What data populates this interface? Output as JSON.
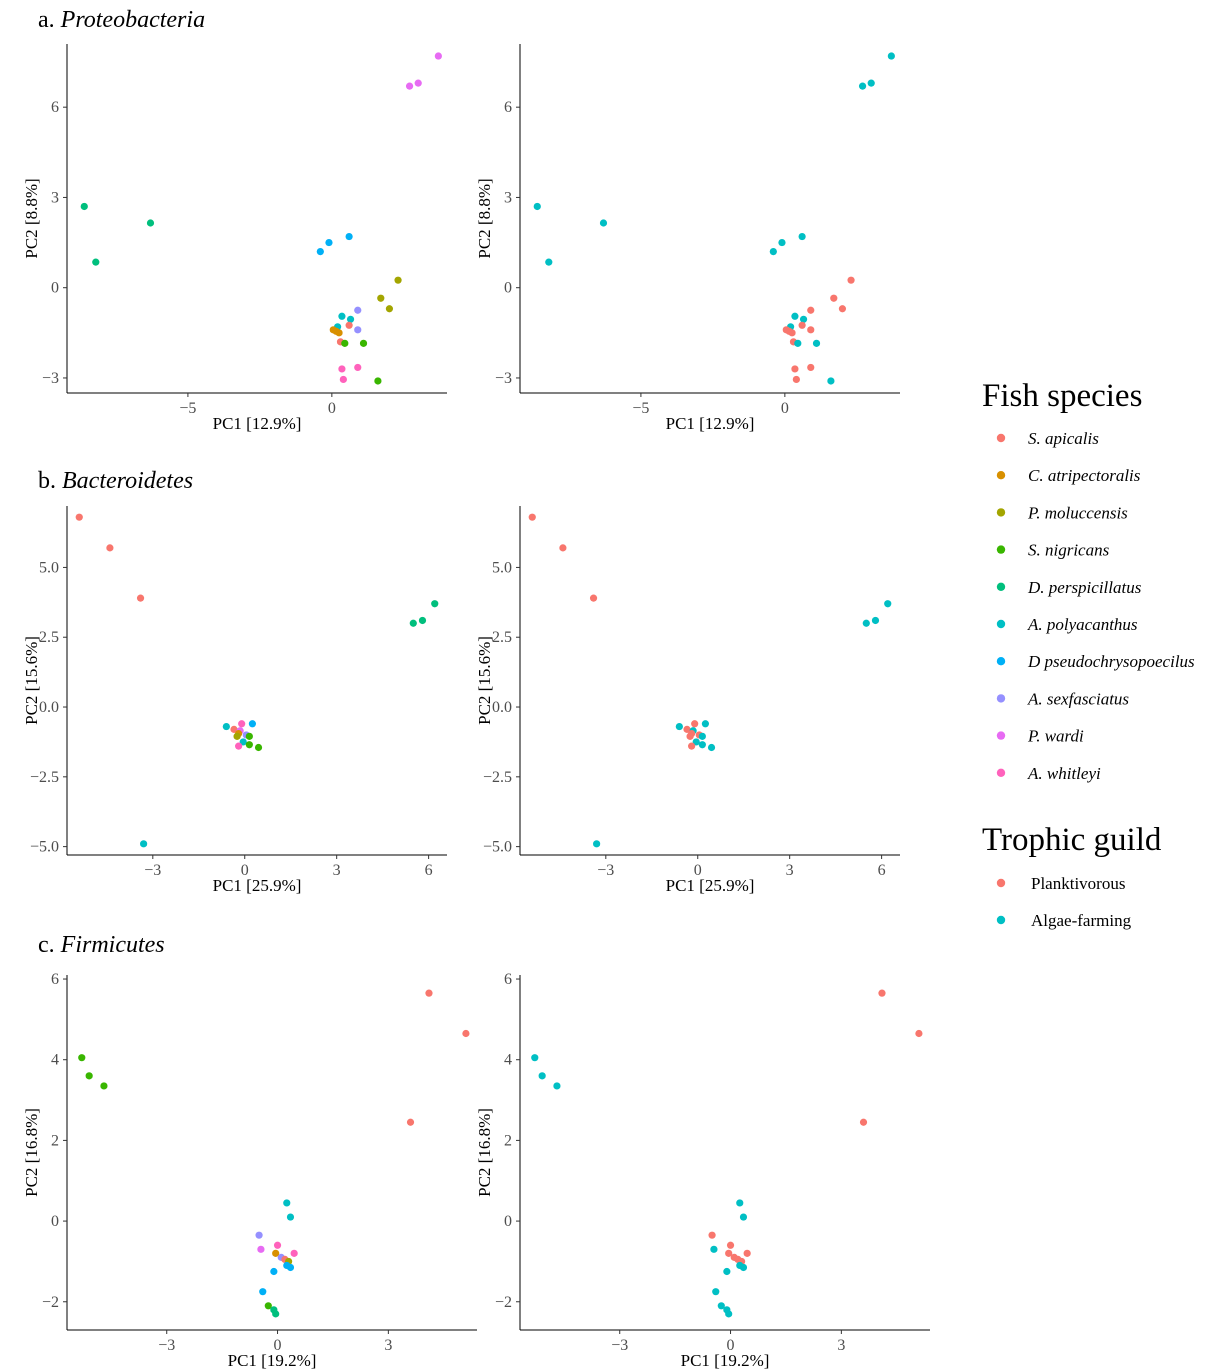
{
  "chart_data": [
    {
      "type": "scatter",
      "panel": "a",
      "title_prefix": "a.",
      "title_taxon": "Proteobacteria",
      "xlabel": "PC1   [12.9%]",
      "ylabel": "PC2   [8.8%]",
      "xticks": [
        "−5",
        "0"
      ],
      "yticks": [
        "−3",
        "0",
        "3",
        "6"
      ],
      "points": [
        {
          "x": -8.6,
          "y": 2.7,
          "species": "D. perspicillatus"
        },
        {
          "x": -8.2,
          "y": 0.85,
          "species": "D. perspicillatus"
        },
        {
          "x": -6.3,
          "y": 2.15,
          "species": "D. perspicillatus"
        },
        {
          "x": -0.4,
          "y": 1.2,
          "species": "D pseudochrysopoecilus"
        },
        {
          "x": -0.1,
          "y": 1.5,
          "species": "D pseudochrysopoecilus"
        },
        {
          "x": 0.6,
          "y": 1.7,
          "species": "D pseudochrysopoecilus"
        },
        {
          "x": 2.3,
          "y": 0.25,
          "species": "P. moluccensis"
        },
        {
          "x": 1.7,
          "y": -0.35,
          "species": "P. moluccensis"
        },
        {
          "x": 2.0,
          "y": -0.7,
          "species": "P. moluccensis"
        },
        {
          "x": 0.9,
          "y": -0.75,
          "species": "A. sexfasciatus"
        },
        {
          "x": 0.9,
          "y": -1.4,
          "species": "A. sexfasciatus"
        },
        {
          "x": 0.35,
          "y": -0.95,
          "species": "A. polyacanthus"
        },
        {
          "x": 0.65,
          "y": -1.05,
          "species": "A. polyacanthus"
        },
        {
          "x": 0.6,
          "y": -1.25,
          "species": "S. apicalis"
        },
        {
          "x": 0.2,
          "y": -1.3,
          "species": "A. polyacanthus"
        },
        {
          "x": 0.05,
          "y": -1.4,
          "species": "C. atripectoralis"
        },
        {
          "x": 0.15,
          "y": -1.45,
          "species": "C. atripectoralis"
        },
        {
          "x": 0.25,
          "y": -1.5,
          "species": "C. atripectoralis"
        },
        {
          "x": 0.3,
          "y": -1.8,
          "species": "S. apicalis"
        },
        {
          "x": 0.45,
          "y": -1.85,
          "species": "S. nigricans"
        },
        {
          "x": 1.1,
          "y": -1.85,
          "species": "S. nigricans"
        },
        {
          "x": 0.35,
          "y": -2.7,
          "species": "A. whitleyi"
        },
        {
          "x": 0.9,
          "y": -2.65,
          "species": "A. whitleyi"
        },
        {
          "x": 0.4,
          "y": -3.05,
          "species": "A. whitleyi"
        },
        {
          "x": 1.6,
          "y": -3.1,
          "species": "S. nigricans"
        },
        {
          "x": 2.7,
          "y": 6.7,
          "species": "P. wardi"
        },
        {
          "x": 3.0,
          "y": 6.8,
          "species": "P. wardi"
        },
        {
          "x": 3.7,
          "y": 7.7,
          "species": "P. wardi"
        }
      ]
    },
    {
      "type": "scatter",
      "panel": "b",
      "title_prefix": "b.",
      "title_taxon": "Bacteroidetes",
      "xlabel": "PC1   [25.9%]",
      "ylabel": "PC2   [15.6%]",
      "xticks": [
        "−3",
        "0",
        "3",
        "6"
      ],
      "yticks": [
        "−5.0",
        "−2.5",
        "0.0",
        "2.5",
        "5.0"
      ],
      "points": [
        {
          "x": -5.4,
          "y": 6.8,
          "species": "S. apicalis"
        },
        {
          "x": -4.4,
          "y": 5.7,
          "species": "S. apicalis"
        },
        {
          "x": -3.4,
          "y": 3.9,
          "species": "S. apicalis"
        },
        {
          "x": -3.3,
          "y": -4.9,
          "species": "A. polyacanthus"
        },
        {
          "x": 5.5,
          "y": 3.0,
          "species": "D. perspicillatus"
        },
        {
          "x": 5.8,
          "y": 3.1,
          "species": "D. perspicillatus"
        },
        {
          "x": 6.2,
          "y": 3.7,
          "species": "D. perspicillatus"
        },
        {
          "x": -0.6,
          "y": -0.7,
          "species": "A. polyacanthus"
        },
        {
          "x": -0.35,
          "y": -0.8,
          "species": "S. apicalis"
        },
        {
          "x": -0.1,
          "y": -0.6,
          "species": "A. whitleyi"
        },
        {
          "x": 0.25,
          "y": -0.6,
          "species": "D pseudochrysopoecilus"
        },
        {
          "x": -0.15,
          "y": -0.85,
          "species": "P. wardi"
        },
        {
          "x": -0.2,
          "y": -0.95,
          "species": "C. atripectoralis"
        },
        {
          "x": -0.25,
          "y": -1.05,
          "species": "P. moluccensis"
        },
        {
          "x": 0.05,
          "y": -1.0,
          "species": "A. sexfasciatus"
        },
        {
          "x": 0.15,
          "y": -1.05,
          "species": "S. nigricans"
        },
        {
          "x": -0.05,
          "y": -1.25,
          "species": "A. polyacanthus"
        },
        {
          "x": 0.15,
          "y": -1.35,
          "species": "S. nigricans"
        },
        {
          "x": -0.2,
          "y": -1.4,
          "species": "A. whitleyi"
        },
        {
          "x": 0.45,
          "y": -1.45,
          "species": "S. nigricans"
        }
      ]
    },
    {
      "type": "scatter",
      "panel": "c",
      "title_prefix": "c.",
      "title_taxon": "Firmicutes",
      "xlabel": "PC1   [19.2%]",
      "ylabel": "PC2   [16.8%]",
      "xticks": [
        "−3",
        "0",
        "3"
      ],
      "yticks": [
        "−2",
        "0",
        "2",
        "4",
        "6"
      ],
      "points": [
        {
          "x": -5.3,
          "y": 4.05,
          "species": "S. nigricans"
        },
        {
          "x": -5.1,
          "y": 3.6,
          "species": "S. nigricans"
        },
        {
          "x": -4.7,
          "y": 3.35,
          "species": "S. nigricans"
        },
        {
          "x": 4.1,
          "y": 5.65,
          "species": "S. apicalis"
        },
        {
          "x": 5.1,
          "y": 4.65,
          "species": "S. apicalis"
        },
        {
          "x": 3.6,
          "y": 2.45,
          "species": "S. apicalis"
        },
        {
          "x": 0.25,
          "y": 0.45,
          "species": "A. polyacanthus"
        },
        {
          "x": 0.35,
          "y": 0.1,
          "species": "A. polyacanthus"
        },
        {
          "x": -0.5,
          "y": -0.35,
          "species": "A. sexfasciatus"
        },
        {
          "x": -0.45,
          "y": -0.7,
          "species": "P. wardi"
        },
        {
          "x": 0.0,
          "y": -0.6,
          "species": "A. whitleyi"
        },
        {
          "x": -0.05,
          "y": -0.8,
          "species": "C. atripectoralis"
        },
        {
          "x": 0.1,
          "y": -0.9,
          "species": "A. sexfasciatus"
        },
        {
          "x": 0.2,
          "y": -0.95,
          "species": "S. apicalis"
        },
        {
          "x": 0.3,
          "y": -1.0,
          "species": "P. moluccensis"
        },
        {
          "x": 0.25,
          "y": -1.1,
          "species": "D pseudochrysopoecilus"
        },
        {
          "x": 0.35,
          "y": -1.15,
          "species": "D pseudochrysopoecilus"
        },
        {
          "x": 0.45,
          "y": -0.8,
          "species": "A. whitleyi"
        },
        {
          "x": -0.1,
          "y": -1.25,
          "species": "D pseudochrysopoecilus"
        },
        {
          "x": -0.4,
          "y": -1.75,
          "species": "D pseudochrysopoecilus"
        },
        {
          "x": -0.25,
          "y": -2.1,
          "species": "S. nigricans"
        },
        {
          "x": -0.1,
          "y": -2.2,
          "species": "D. perspicillatus"
        },
        {
          "x": -0.05,
          "y": -2.3,
          "species": "D. perspicillatus"
        }
      ]
    }
  ],
  "legend": {
    "species_title": "Fish species",
    "species": [
      {
        "name": "S. apicalis",
        "color": "#F8766D",
        "guild": "Planktivorous"
      },
      {
        "name": "C. atripectoralis",
        "color": "#D89000",
        "guild": "Planktivorous"
      },
      {
        "name": "P. moluccensis",
        "color": "#A3A500",
        "guild": "Planktivorous"
      },
      {
        "name": "S. nigricans",
        "color": "#39B600",
        "guild": "Algae-farming"
      },
      {
        "name": "D. perspicillatus",
        "color": "#00BF7D",
        "guild": "Algae-farming"
      },
      {
        "name": "A. polyacanthus",
        "color": "#00BFC4",
        "guild": "Algae-farming"
      },
      {
        "name": "D pseudochrysopoecilus",
        "color": "#00B0F6",
        "guild": "Algae-farming"
      },
      {
        "name": "A. sexfasciatus",
        "color": "#9590FF",
        "guild": "Planktivorous"
      },
      {
        "name": "P. wardi",
        "color": "#E76BF3",
        "guild": "Algae-farming"
      },
      {
        "name": "A. whitleyi",
        "color": "#FF62BC",
        "guild": "Planktivorous"
      }
    ],
    "guild_title": "Trophic guild",
    "guilds": [
      {
        "name": "Planktivorous",
        "color": "#F8766D"
      },
      {
        "name": "Algae-farming",
        "color": "#00BFC4"
      }
    ]
  }
}
